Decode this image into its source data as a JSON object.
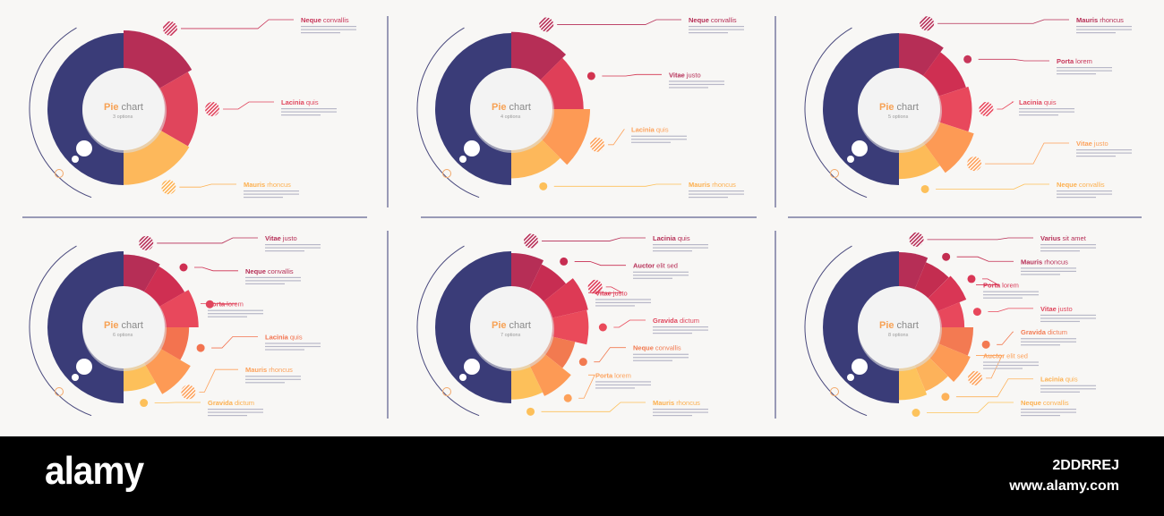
{
  "colors": {
    "background": "#f8f7f5",
    "navy": "#3a3c78",
    "center": "#f3f3f3",
    "line": "#4a4a7e",
    "divider": "#3a3c78",
    "title_pie": "#f7a255",
    "title_chart": "#8a8a8a",
    "subtitle": "#9a9a9a",
    "body_text": "#b8b8c8"
  },
  "panels": [
    {
      "title_main": "Pie",
      "title_sub": "chart",
      "options_label": "3 options",
      "slices": [
        {
          "value": 1,
          "level": 1.0,
          "color": "#b62e56"
        },
        {
          "value": 1,
          "level": 0.85,
          "color": "#e0455c"
        },
        {
          "value": 1,
          "level": 0.9,
          "color": "#fdb85b"
        }
      ],
      "labels": [
        {
          "bold": "Neque",
          "rest": "convallis",
          "color": "#c8365a",
          "marker": "#c8365a",
          "marker_hatched": true
        },
        {
          "bold": "Lacinia",
          "rest": "quis",
          "color": "#e0455c",
          "marker": "#e0455c",
          "marker_hatched": true
        },
        {
          "bold": "Mauris",
          "rest": "rhoncus",
          "color": "#fdb04f",
          "marker": "#fdb04f",
          "marker_hatched": true
        }
      ]
    },
    {
      "title_main": "Pie",
      "title_sub": "chart",
      "options_label": "4 options",
      "slices": [
        {
          "value": 1,
          "level": 0.95,
          "color": "#b62e56"
        },
        {
          "value": 1,
          "level": 0.78,
          "color": "#df3f58"
        },
        {
          "value": 1,
          "level": 1.0,
          "color": "#fd9a55"
        },
        {
          "value": 1,
          "level": 0.68,
          "color": "#fdb85b"
        }
      ],
      "labels": [
        {
          "bold": "Neque",
          "rest": "convallis",
          "color": "#b62e56",
          "marker": "#b62e56",
          "marker_hatched": true
        },
        {
          "bold": "Vitae",
          "rest": "justo",
          "color": "#b62e56",
          "marker": "#d2334f",
          "marker_hatched": false
        },
        {
          "bold": "Lacinia",
          "rest": "quis",
          "color": "#fda15a",
          "marker": "#fda15a",
          "marker_hatched": true
        },
        {
          "bold": "Mauris",
          "rest": "rhoncus",
          "color": "#fdb04f",
          "marker": "#fdc05a",
          "marker_hatched": false
        }
      ]
    },
    {
      "title_main": "Pie",
      "title_sub": "chart",
      "options_label": "5 options",
      "slices": [
        {
          "value": 1,
          "level": 0.9,
          "color": "#b62e56"
        },
        {
          "value": 1,
          "level": 0.72,
          "color": "#cf2f52"
        },
        {
          "value": 1,
          "level": 0.8,
          "color": "#e8485c"
        },
        {
          "value": 1,
          "level": 1.0,
          "color": "#fd9a55"
        },
        {
          "value": 1,
          "level": 0.7,
          "color": "#fdbb58"
        }
      ],
      "labels": [
        {
          "bold": "Mauris",
          "rest": "rhoncus",
          "color": "#b62e56",
          "marker": "#b62e56",
          "marker_hatched": true
        },
        {
          "bold": "Porta",
          "rest": "lorem",
          "color": "#c8365a",
          "marker": "#c8365a",
          "marker_hatched": false
        },
        {
          "bold": "Lacinia",
          "rest": "quis",
          "color": "#e0455c",
          "marker": "#e8485c",
          "marker_hatched": true
        },
        {
          "bold": "Vitae",
          "rest": "justo",
          "color": "#fda15a",
          "marker": "#fda15a",
          "marker_hatched": true
        },
        {
          "bold": "Neque",
          "rest": "convallis",
          "color": "#fdb04f",
          "marker": "#fdc05a",
          "marker_hatched": false
        }
      ]
    },
    {
      "title_main": "Pie",
      "title_sub": "chart",
      "options_label": "6 options",
      "slices": [
        {
          "value": 1,
          "level": 0.8,
          "color": "#b62e56"
        },
        {
          "value": 1,
          "level": 0.72,
          "color": "#cf2f52"
        },
        {
          "value": 1,
          "level": 0.87,
          "color": "#e8485c"
        },
        {
          "value": 1,
          "level": 0.55,
          "color": "#f3734f"
        },
        {
          "value": 1,
          "level": 0.95,
          "color": "#fd9a55"
        },
        {
          "value": 1,
          "level": 0.5,
          "color": "#fdc05a"
        }
      ],
      "labels": [
        {
          "bold": "Vitae",
          "rest": "justo",
          "color": "#b62e56",
          "marker": "#b62e56",
          "marker_hatched": true
        },
        {
          "bold": "Neque",
          "rest": "convallis",
          "color": "#b62e56",
          "marker": "#cf2f52",
          "marker_hatched": false
        },
        {
          "bold": "Porta",
          "rest": "lorem",
          "color": "#e0455c",
          "marker": "#e0455c",
          "marker_hatched": false
        },
        {
          "bold": "Lacinia",
          "rest": "quis",
          "color": "#f3734f",
          "marker": "#f3734f",
          "marker_hatched": false
        },
        {
          "bold": "Mauris",
          "rest": "rhoncus",
          "color": "#fda15a",
          "marker": "#fda15a",
          "marker_hatched": true
        },
        {
          "bold": "Gravida",
          "rest": "dictum",
          "color": "#fdb04f",
          "marker": "#fdc05a",
          "marker_hatched": false
        }
      ]
    },
    {
      "title_main": "Pie",
      "title_sub": "chart",
      "options_label": "7 options",
      "slices": [
        {
          "value": 1,
          "level": 0.85,
          "color": "#b62e56"
        },
        {
          "value": 1,
          "level": 0.7,
          "color": "#c72d52"
        },
        {
          "value": 1,
          "level": 1.0,
          "color": "#dd3a55"
        },
        {
          "value": 1,
          "level": 0.95,
          "color": "#ea4a5a"
        },
        {
          "value": 1,
          "level": 0.55,
          "color": "#f27a50"
        },
        {
          "value": 1,
          "level": 0.92,
          "color": "#fd9a55"
        },
        {
          "value": 1,
          "level": 0.78,
          "color": "#fdc05a"
        }
      ],
      "labels": [
        {
          "bold": "Lacinia",
          "rest": "quis",
          "color": "#b62e56",
          "marker": "#b62e56",
          "marker_hatched": true
        },
        {
          "bold": "Auctor",
          "rest": "elit sed",
          "color": "#b62e56",
          "marker": "#c72d52",
          "marker_hatched": false
        },
        {
          "bold": "Vitae",
          "rest": "justo",
          "color": "#dd3a55",
          "marker": "#dd3a55",
          "marker_hatched": true
        },
        {
          "bold": "Gravida",
          "rest": "dictum",
          "color": "#e0455c",
          "marker": "#ea4a5a",
          "marker_hatched": false
        },
        {
          "bold": "Neque",
          "rest": "convallis",
          "color": "#f27a50",
          "marker": "#f27a50",
          "marker_hatched": false
        },
        {
          "bold": "Porta",
          "rest": "lorem",
          "color": "#fda15a",
          "marker": "#fda15a",
          "marker_hatched": false
        },
        {
          "bold": "Mauris",
          "rest": "rhoncus",
          "color": "#fdb04f",
          "marker": "#fdc05a",
          "marker_hatched": false
        }
      ]
    },
    {
      "title_main": "Pie",
      "title_sub": "chart",
      "options_label": "8 options",
      "slices": [
        {
          "value": 1,
          "level": 0.88,
          "color": "#b62e56"
        },
        {
          "value": 1,
          "level": 0.72,
          "color": "#c32d50"
        },
        {
          "value": 1,
          "level": 0.8,
          "color": "#d93655"
        },
        {
          "value": 1,
          "level": 0.55,
          "color": "#e8485c"
        },
        {
          "value": 1,
          "level": 0.85,
          "color": "#f37a52"
        },
        {
          "value": 1,
          "level": 0.95,
          "color": "#fd9a55"
        },
        {
          "value": 1,
          "level": 0.68,
          "color": "#fdb25a"
        },
        {
          "value": 1,
          "level": 0.8,
          "color": "#fdc35c"
        }
      ],
      "labels": [
        {
          "bold": "Varius",
          "rest": "sit amet",
          "color": "#b62e56",
          "marker": "#b62e56",
          "marker_hatched": true
        },
        {
          "bold": "Mauris",
          "rest": "rhoncus",
          "color": "#b62e56",
          "marker": "#c32d50",
          "marker_hatched": false
        },
        {
          "bold": "Porta",
          "rest": "lorem",
          "color": "#d93655",
          "marker": "#d93655",
          "marker_hatched": false
        },
        {
          "bold": "Vitae",
          "rest": "justo",
          "color": "#e0455c",
          "marker": "#e8485c",
          "marker_hatched": false
        },
        {
          "bold": "Gravida",
          "rest": "dictum",
          "color": "#f37a52",
          "marker": "#f37a52",
          "marker_hatched": false
        },
        {
          "bold": "Auctor",
          "rest": "elit sed",
          "color": "#fda15a",
          "marker": "#fda15a",
          "marker_hatched": true
        },
        {
          "bold": "Lacinia",
          "rest": "quis",
          "color": "#fdb04f",
          "marker": "#fdb25a",
          "marker_hatched": false
        },
        {
          "bold": "Neque",
          "rest": "convallis",
          "color": "#fdb04f",
          "marker": "#fdc35c",
          "marker_hatched": false
        }
      ]
    }
  ],
  "footer": {
    "logo": "alamy",
    "image_code": "2DDRREJ",
    "url": "www.alamy.com"
  }
}
